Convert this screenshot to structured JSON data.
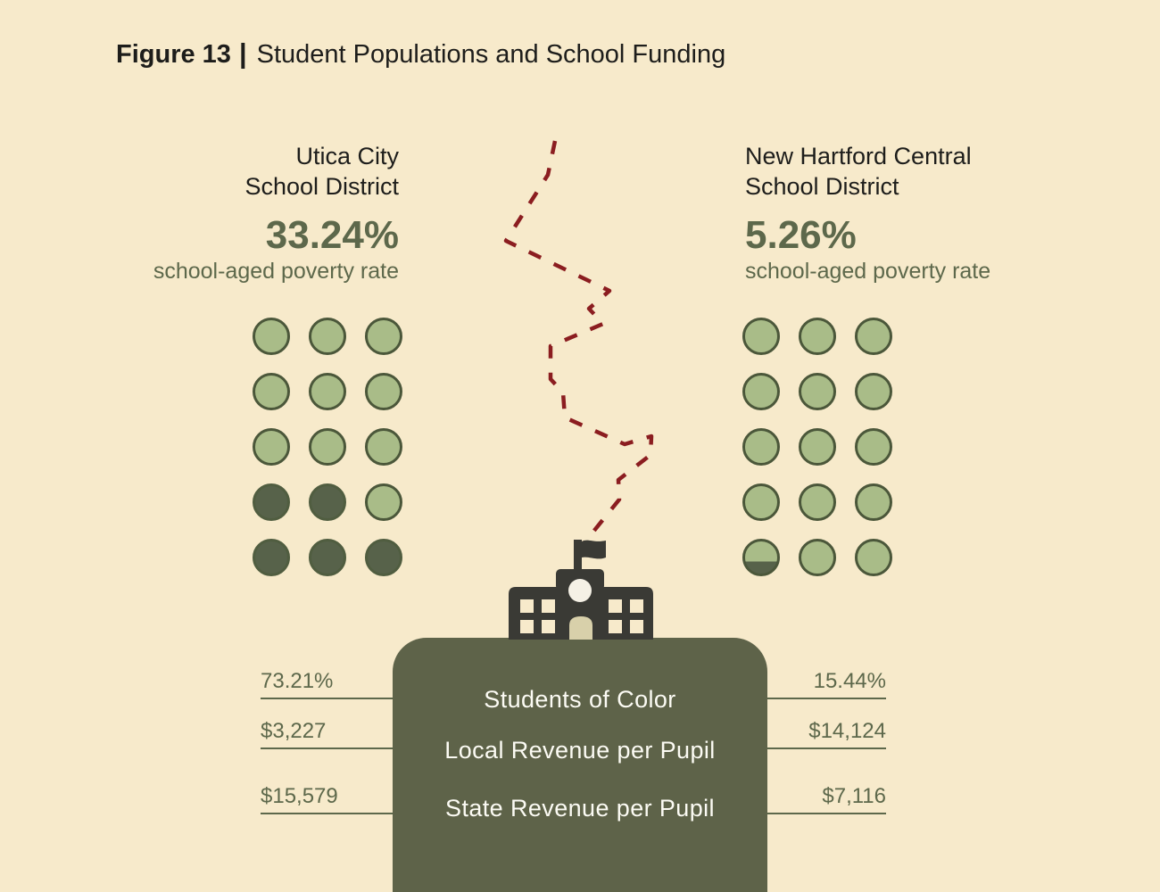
{
  "title": {
    "prefix": "Figure 13",
    "separator": "|",
    "main": "Student Populations and School Funding"
  },
  "left_district": {
    "name_line1": "Utica City",
    "name_line2": "School District",
    "poverty_rate": "33.24%",
    "poverty_label": "school-aged poverty rate",
    "dots": [
      "light",
      "light",
      "light",
      "light",
      "light",
      "light",
      "light",
      "light",
      "light",
      "dark",
      "dark",
      "light",
      "dark",
      "dark",
      "dark"
    ],
    "students_of_color": "73.21%",
    "local_revenue_per_pupil": "$3,227",
    "state_revenue_per_pupil": "$15,579"
  },
  "right_district": {
    "name_line1": "New Hartford Central",
    "name_line2": "School District",
    "poverty_rate": "5.26%",
    "poverty_label": "school-aged poverty rate",
    "dots": [
      "light",
      "light",
      "light",
      "light",
      "light",
      "light",
      "light",
      "light",
      "light",
      "light",
      "light",
      "light",
      "partial",
      "light",
      "light"
    ],
    "students_of_color": "15.44%",
    "local_revenue_per_pupil": "$14,124",
    "state_revenue_per_pupil": "$7,116"
  },
  "center_panel": {
    "row_labels": [
      "Students of Color",
      "Local Revenue per Pupil",
      "State Revenue per Pupil"
    ]
  },
  "colors": {
    "background": "#f7eacb",
    "text_dark": "#1d1d1b",
    "olive_text": "#5d684b",
    "dot_light_fill": "#a9bc88",
    "dot_dark_fill": "#57624a",
    "dot_border": "#4b573a",
    "panel_background": "#5e6349",
    "panel_text": "#fcfbf4",
    "dashed_border_red": "#8b1d20",
    "building_charcoal": "#3a3a35",
    "door_cream": "#d8d0aa"
  },
  "chart_data": {
    "type": "table",
    "title": "Figure 13 | Student Populations and School Funding",
    "categories": [
      "school-aged poverty rate",
      "Students of Color",
      "Local Revenue per Pupil",
      "State Revenue per Pupil"
    ],
    "series": [
      {
        "name": "Utica City School District",
        "values": [
          33.24,
          73.21,
          3227,
          15579
        ],
        "display": [
          "33.24%",
          "73.21%",
          "$3,227",
          "$15,579"
        ]
      },
      {
        "name": "New Hartford Central School District",
        "values": [
          5.26,
          15.44,
          14124,
          7116
        ],
        "display": [
          "5.26%",
          "15.44%",
          "$14,124",
          "$7,116"
        ]
      }
    ],
    "pictogram": {
      "dots_per_grid": 15,
      "grid_shape": "3 columns x 5 rows",
      "utica_filled_dots": 5,
      "new_hartford_filled_dots": 0.79,
      "filled_represents": "school-aged poverty rate share of dots, filled from bottom"
    },
    "layout_hints": {
      "left_column": "Utica City School District",
      "right_column": "New Hartford Central School District",
      "center": "dashed district border line leading to school building above shared stats panel"
    }
  }
}
